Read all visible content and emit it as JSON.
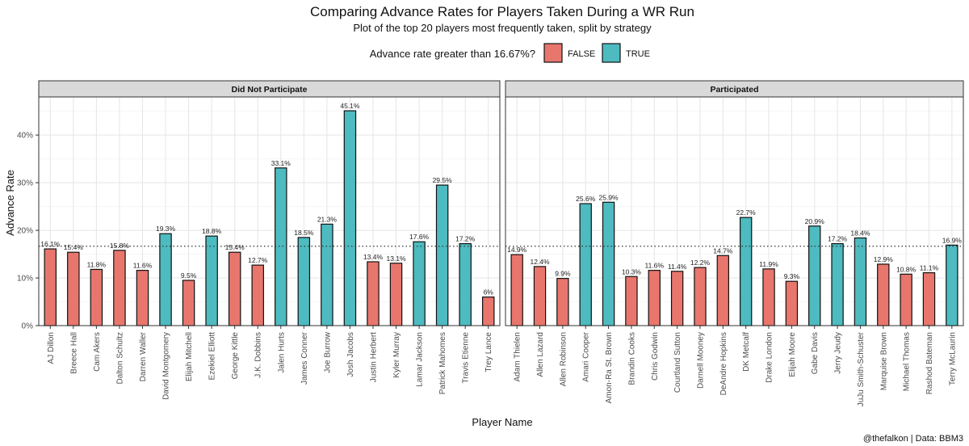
{
  "chart_data": {
    "type": "bar",
    "title": "Comparing Advance Rates for Players Taken During a WR Run",
    "subtitle": "Plot of the top 20 players most frequently taken, split by strategy",
    "xlabel": "Player Name",
    "ylabel": "Advance Rate",
    "ylim": [
      0,
      48
    ],
    "yticks": [
      0,
      10,
      20,
      30,
      40
    ],
    "ytick_labels": [
      "0%",
      "10%",
      "20%",
      "30%",
      "40%"
    ],
    "reference_line": 16.67,
    "caption": "@thefalkon | Data: BBM3",
    "legend": {
      "title": "Advance rate greater than 16.67%?",
      "position": "top",
      "entries": [
        {
          "key": "false",
          "label": "FALSE",
          "color": "#E8766D"
        },
        {
          "key": "true",
          "label": "TRUE",
          "color": "#4DBBC0"
        }
      ]
    },
    "facets": [
      {
        "label": "Did Not Participate",
        "categories": [
          "AJ Dillon",
          "Breece Hall",
          "Cam Akers",
          "Dalton Schultz",
          "Darren Waller",
          "David Montgomery",
          "Elijah Mitchell",
          "Ezekiel Elliott",
          "George Kittle",
          "J.K. Dobbins",
          "Jalen Hurts",
          "James Conner",
          "Joe Burrow",
          "Josh Jacobs",
          "Justin Herbert",
          "Kyler Murray",
          "Lamar Jackson",
          "Patrick Mahomes",
          "Travis Etienne",
          "Trey Lance"
        ],
        "values": [
          16.1,
          15.4,
          11.8,
          15.8,
          11.6,
          19.3,
          9.5,
          18.8,
          15.4,
          12.7,
          33.1,
          18.5,
          21.3,
          45.1,
          13.4,
          13.1,
          17.6,
          29.5,
          17.2,
          6.0
        ],
        "labels": [
          "16.1%",
          "15.4%",
          "11.8%",
          "15.8%",
          "11.6%",
          "19.3%",
          "9.5%",
          "18.8%",
          "15.4%",
          "12.7%",
          "33.1%",
          "18.5%",
          "21.3%",
          "45.1%",
          "13.4%",
          "13.1%",
          "17.6%",
          "29.5%",
          "17.2%",
          "6%"
        ]
      },
      {
        "label": "Participated",
        "categories": [
          "Adam Thielen",
          "Allen Lazard",
          "Allen Robinson",
          "Amari Cooper",
          "Amon-Ra St. Brown",
          "Brandin Cooks",
          "Chris Godwin",
          "Courtland Sutton",
          "Darnell Mooney",
          "DeAndre Hopkins",
          "DK Metcalf",
          "Drake London",
          "Elijah Moore",
          "Gabe Davis",
          "Jerry Jeudy",
          "JuJu Smith-Schuster",
          "Marquise Brown",
          "Michael Thomas",
          "Rashod Bateman",
          "Terry McLaurin"
        ],
        "values": [
          14.9,
          12.4,
          9.9,
          25.6,
          25.9,
          10.3,
          11.6,
          11.4,
          12.2,
          14.7,
          22.7,
          11.9,
          9.3,
          20.9,
          17.2,
          18.4,
          12.9,
          10.8,
          11.1,
          16.9
        ],
        "labels": [
          "14.9%",
          "12.4%",
          "9.9%",
          "25.6%",
          "25.9%",
          "10.3%",
          "11.6%",
          "11.4%",
          "12.2%",
          "14.7%",
          "22.7%",
          "11.9%",
          "9.3%",
          "20.9%",
          "17.2%",
          "18.4%",
          "12.9%",
          "10.8%",
          "11.1%",
          "16.9%"
        ]
      }
    ]
  }
}
